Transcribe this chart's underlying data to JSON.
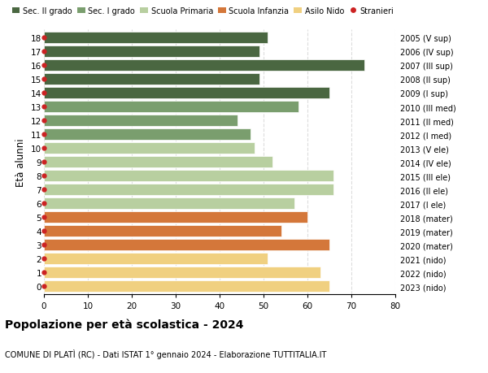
{
  "ages": [
    18,
    17,
    16,
    15,
    14,
    13,
    12,
    11,
    10,
    9,
    8,
    7,
    6,
    5,
    4,
    3,
    2,
    1,
    0
  ],
  "values": [
    51,
    49,
    73,
    49,
    65,
    58,
    44,
    47,
    48,
    52,
    66,
    66,
    57,
    60,
    54,
    65,
    51,
    63,
    65
  ],
  "right_labels": [
    "2005 (V sup)",
    "2006 (IV sup)",
    "2007 (III sup)",
    "2008 (II sup)",
    "2009 (I sup)",
    "2010 (III med)",
    "2011 (II med)",
    "2012 (I med)",
    "2013 (V ele)",
    "2014 (IV ele)",
    "2015 (III ele)",
    "2016 (II ele)",
    "2017 (I ele)",
    "2018 (mater)",
    "2019 (mater)",
    "2020 (mater)",
    "2021 (nido)",
    "2022 (nido)",
    "2023 (nido)"
  ],
  "bar_colors": [
    "#4a6741",
    "#4a6741",
    "#4a6741",
    "#4a6741",
    "#4a6741",
    "#7a9e6e",
    "#7a9e6e",
    "#7a9e6e",
    "#b8cfa0",
    "#b8cfa0",
    "#b8cfa0",
    "#b8cfa0",
    "#b8cfa0",
    "#d4773a",
    "#d4773a",
    "#d4773a",
    "#f0d080",
    "#f0d080",
    "#f0d080"
  ],
  "stranieri_dots": [
    18,
    17,
    16,
    15,
    14,
    13,
    12,
    11,
    10,
    9,
    8,
    7,
    6,
    5,
    4,
    3,
    2,
    1,
    0
  ],
  "legend_labels": [
    "Sec. II grado",
    "Sec. I grado",
    "Scuola Primaria",
    "Scuola Infanzia",
    "Asilo Nido",
    "Stranieri"
  ],
  "legend_colors": [
    "#4a6741",
    "#7a9e6e",
    "#b8cfa0",
    "#d4773a",
    "#f0d080",
    "#cc2222"
  ],
  "ylabel": "Età alunni",
  "title": "Popolazione per età scolastica - 2024",
  "subtitle": "COMUNE DI PLATÌ (RC) - Dati ISTAT 1° gennaio 2024 - Elaborazione TUTTITALIA.IT",
  "xlim": [
    0,
    80
  ],
  "xticks": [
    0,
    10,
    20,
    30,
    40,
    50,
    60,
    70,
    80
  ],
  "bg_color": "#ffffff",
  "grid_color": "#dddddd"
}
